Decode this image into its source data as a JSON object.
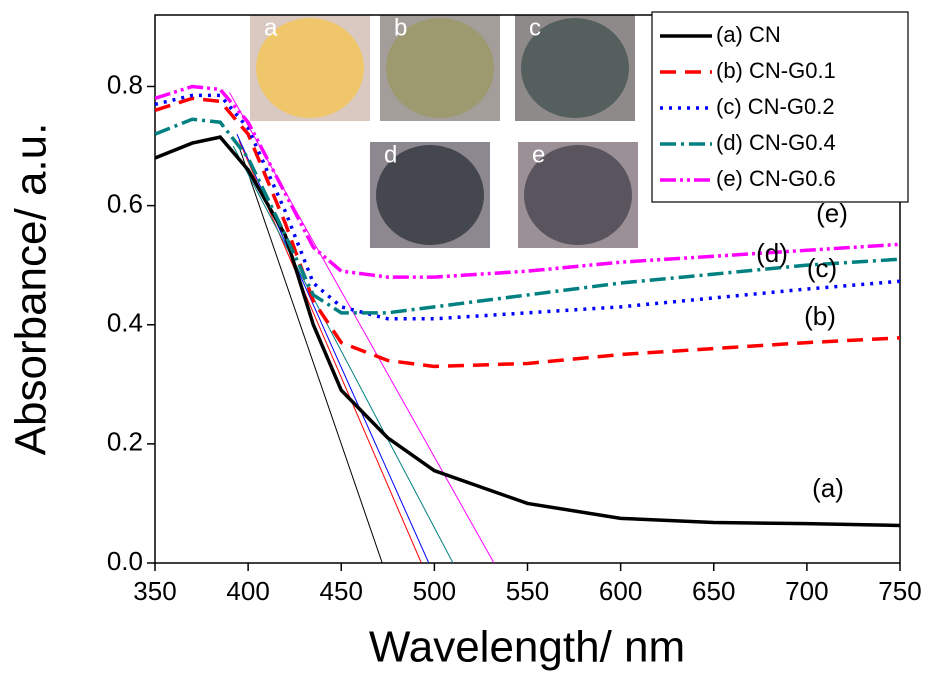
{
  "chart_data": {
    "type": "line",
    "xlabel": "Wavelength/ nm",
    "ylabel": "Absorbance/ a.u.",
    "x": [
      350,
      370,
      385,
      400,
      420,
      435,
      450,
      475,
      500,
      550,
      600,
      650,
      700,
      750
    ],
    "series": [
      {
        "name": "(a) CN",
        "color": "#000000",
        "values": [
          0.68,
          0.705,
          0.715,
          0.66,
          0.55,
          0.4,
          0.29,
          0.21,
          0.155,
          0.1,
          0.075,
          0.068,
          0.066,
          0.063
        ]
      },
      {
        "name": "(b) CN-G0.1",
        "color": "#ff0000",
        "values": [
          0.76,
          0.78,
          0.775,
          0.72,
          0.57,
          0.44,
          0.37,
          0.34,
          0.33,
          0.335,
          0.35,
          0.36,
          0.37,
          0.378
        ]
      },
      {
        "name": "(c) CN-G0.2",
        "color": "#0000ff",
        "values": [
          0.77,
          0.785,
          0.785,
          0.73,
          0.59,
          0.47,
          0.43,
          0.41,
          0.41,
          0.42,
          0.43,
          0.445,
          0.46,
          0.473
        ]
      },
      {
        "name": "(d) CN-G0.4",
        "color": "#008080",
        "values": [
          0.72,
          0.745,
          0.74,
          0.68,
          0.55,
          0.45,
          0.42,
          0.42,
          0.43,
          0.45,
          0.47,
          0.485,
          0.5,
          0.51
        ]
      },
      {
        "name": "(e) CN-G0.6",
        "color": "#ff00ff",
        "values": [
          0.78,
          0.8,
          0.795,
          0.74,
          0.62,
          0.53,
          0.49,
          0.48,
          0.48,
          0.49,
          0.505,
          0.515,
          0.525,
          0.535
        ]
      }
    ],
    "tangent_lines": [
      {
        "color": "#000000",
        "x": [
          395,
          472
        ],
        "values": [
          0.7,
          0
        ]
      },
      {
        "color": "#ff0000",
        "x": [
          395,
          493
        ],
        "values": [
          0.71,
          0
        ]
      },
      {
        "color": "#0000ff",
        "x": [
          394,
          497
        ],
        "values": [
          0.72,
          0
        ]
      },
      {
        "color": "#008080",
        "x": [
          392,
          510
        ],
        "values": [
          0.7,
          0
        ]
      },
      {
        "color": "#ff00ff",
        "x": [
          390,
          532
        ],
        "values": [
          0.79,
          0
        ]
      }
    ],
    "annotations": [
      "(a)",
      "(b)",
      "(c)",
      "(d)",
      "(e)"
    ],
    "insets": [
      "a",
      "b",
      "c",
      "d",
      "e"
    ],
    "xlim": [
      350,
      750
    ],
    "xticks": [
      350,
      400,
      450,
      500,
      550,
      600,
      650,
      700,
      750
    ],
    "ylim": [
      0,
      0.92
    ],
    "yticks": [
      {
        "value": 0,
        "label": "0.0"
      },
      0.2,
      0.4,
      0.6,
      0.8
    ],
    "legend": "upper right"
  }
}
